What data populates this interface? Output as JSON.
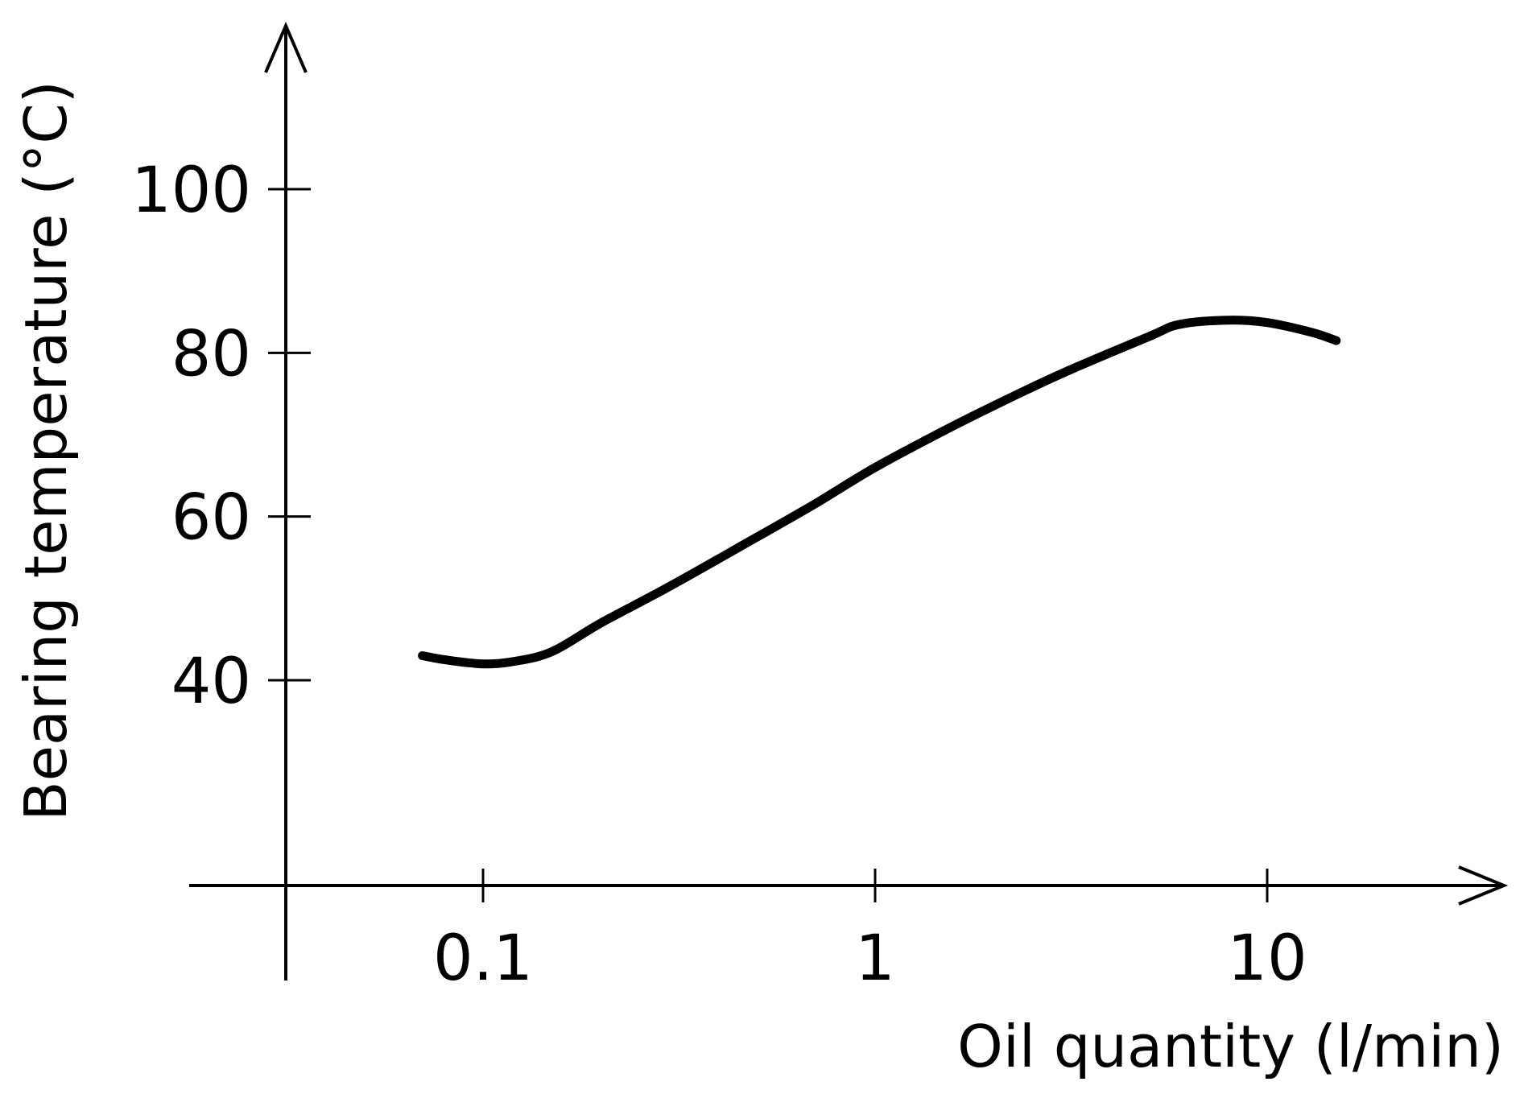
{
  "chart_data": {
    "type": "line",
    "title": "",
    "xlabel": "Oil quantity (l/min)",
    "ylabel": "Bearing temperature (°C)",
    "xscale": "log",
    "x_ticks": [
      {
        "value": 0.1,
        "label": "0.1"
      },
      {
        "value": 1,
        "label": "1"
      },
      {
        "value": 10,
        "label": "10"
      }
    ],
    "y_ticks": [
      {
        "value": 40,
        "label": "40"
      },
      {
        "value": 60,
        "label": "60"
      },
      {
        "value": 80,
        "label": "80"
      },
      {
        "value": 100,
        "label": "100"
      }
    ],
    "series": [
      {
        "color": "#000000",
        "points": [
          {
            "x": 0.07,
            "y": 43
          },
          {
            "x": 0.08,
            "y": 42.5
          },
          {
            "x": 0.1,
            "y": 42
          },
          {
            "x": 0.12,
            "y": 42.3
          },
          {
            "x": 0.15,
            "y": 43.5
          },
          {
            "x": 0.2,
            "y": 47
          },
          {
            "x": 0.3,
            "y": 51.5
          },
          {
            "x": 0.5,
            "y": 57.5
          },
          {
            "x": 0.7,
            "y": 61.5
          },
          {
            "x": 1,
            "y": 66
          },
          {
            "x": 1.5,
            "y": 70.5
          },
          {
            "x": 2,
            "y": 73.5
          },
          {
            "x": 3,
            "y": 77.5
          },
          {
            "x": 5,
            "y": 82
          },
          {
            "x": 6,
            "y": 83.5
          },
          {
            "x": 8,
            "y": 84
          },
          {
            "x": 10,
            "y": 83.7
          },
          {
            "x": 13,
            "y": 82.5
          },
          {
            "x": 15,
            "y": 81.5
          }
        ]
      }
    ]
  }
}
